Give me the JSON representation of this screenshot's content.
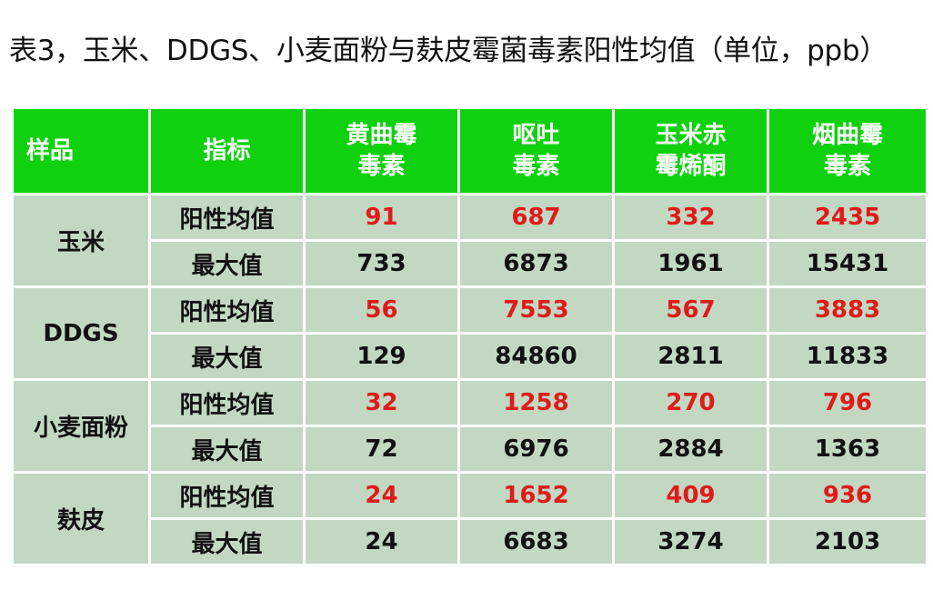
{
  "title": "表3，玉米、DDGS、小麦面粉与麸皮霉菌毒素阳性均值（单位，ppb）",
  "colors": {
    "header_bg": "#10d10f",
    "cell_bg": "#c2d8c2",
    "mean_value_text": "#e01a1a"
  },
  "header": {
    "sample": "样品",
    "metric": "指标",
    "toxins": [
      {
        "line1": "黄曲霉",
        "line2": "毒素"
      },
      {
        "line1": "呕吐",
        "line2": "毒素"
      },
      {
        "line1": "玉米赤",
        "line2": "霉烯酮"
      },
      {
        "line1": "烟曲霉",
        "line2": "毒素"
      }
    ]
  },
  "metrics": {
    "mean": "阳性均值",
    "max": "最大值"
  },
  "rows": [
    {
      "sample": "玉米",
      "mean": [
        "91",
        "687",
        "332",
        "2435"
      ],
      "max": [
        "733",
        "6873",
        "1961",
        "15431"
      ]
    },
    {
      "sample": "DDGS",
      "mean": [
        "56",
        "7553",
        "567",
        "3883"
      ],
      "max": [
        "129",
        "84860",
        "2811",
        "11833"
      ]
    },
    {
      "sample": "小麦面粉",
      "mean": [
        "32",
        "1258",
        "270",
        "796"
      ],
      "max": [
        "72",
        "6976",
        "2884",
        "1363"
      ]
    },
    {
      "sample": "麸皮",
      "mean": [
        "24",
        "1652",
        "409",
        "936"
      ],
      "max": [
        "24",
        "6683",
        "3274",
        "2103"
      ]
    }
  ]
}
